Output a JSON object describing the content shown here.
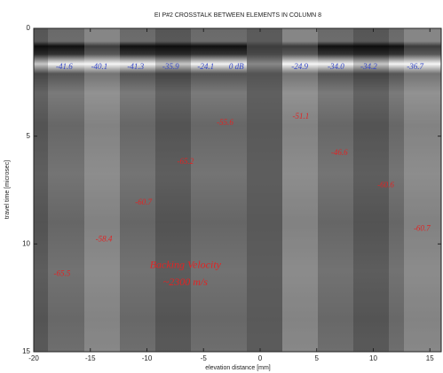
{
  "chart_data": {
    "type": "image",
    "title": "EI P#2 CROSSTALK BETWEEN ELEMENTS IN COLUMN 8",
    "x_label": "elevation distance [mm]",
    "y_label": "travel time [microsec]",
    "xlim": [
      -20,
      16
    ],
    "ylim": [
      0,
      15
    ],
    "y_inverted": true,
    "xticks": [
      -20,
      -15,
      -10,
      -5,
      0,
      5,
      10,
      15
    ],
    "yticks": [
      0,
      5,
      10,
      15
    ],
    "echo_labels": {
      "color": "#3447c8",
      "items": [
        {
          "text": "-41.6",
          "x": -17.3,
          "y": 1.8
        },
        {
          "text": "-40.1",
          "x": -14.2,
          "y": 1.8
        },
        {
          "text": "-41.3",
          "x": -11.0,
          "y": 1.8
        },
        {
          "text": "-35.9",
          "x": -7.9,
          "y": 1.8
        },
        {
          "text": "-24.1",
          "x": -4.8,
          "y": 1.8
        },
        {
          "text": "0 dB",
          "x": -2.1,
          "y": 1.8
        },
        {
          "text": "-24.9",
          "x": 3.5,
          "y": 1.8
        },
        {
          "text": "-34.0",
          "x": 6.7,
          "y": 1.8
        },
        {
          "text": "-34.2",
          "x": 9.6,
          "y": 1.8
        },
        {
          "text": "-36.7",
          "x": 13.7,
          "y": 1.8
        }
      ]
    },
    "crosstalk_labels": {
      "color": "#e02424",
      "items": [
        {
          "text": "-65.5",
          "x": -17.5,
          "y": 11.4
        },
        {
          "text": "-58.4",
          "x": -13.8,
          "y": 9.8
        },
        {
          "text": "-60.7",
          "x": -10.3,
          "y": 8.1
        },
        {
          "text": "-65.2",
          "x": -6.6,
          "y": 6.2
        },
        {
          "text": "-55.6",
          "x": -3.1,
          "y": 4.4
        },
        {
          "text": "-51.1",
          "x": 3.6,
          "y": 4.1
        },
        {
          "text": "-46.6",
          "x": 7.0,
          "y": 5.8
        },
        {
          "text": "-60.6",
          "x": 11.1,
          "y": 7.3
        },
        {
          "text": "-60.7",
          "x": 14.3,
          "y": 9.3
        }
      ]
    },
    "note": {
      "color": "#e02424",
      "items": [
        {
          "text": "Backing Velocity",
          "x": -6.6,
          "y": 11.0
        },
        {
          "text": "~2300 m/s",
          "x": -6.6,
          "y": 11.8
        }
      ]
    }
  }
}
